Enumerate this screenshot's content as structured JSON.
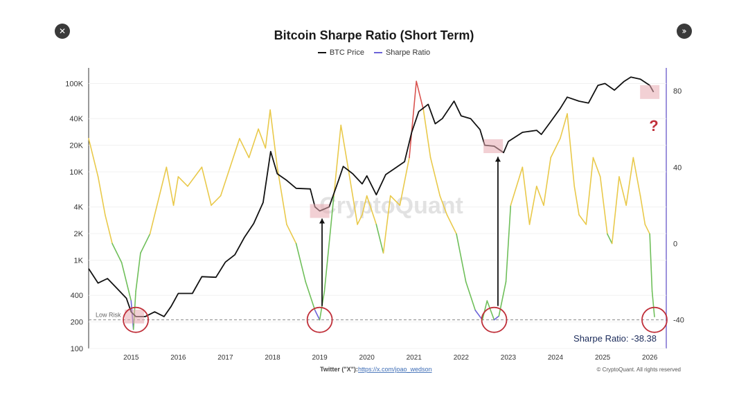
{
  "close_label": "✕",
  "next_label": "››",
  "chart_data": {
    "type": "line",
    "title": "Bitcoin Sharpe Ratio (Short Term)",
    "legend": [
      "BTC Price",
      "Sharpe Ratio"
    ],
    "colors": {
      "price": "#111111",
      "sharpe_low": "#6fbf5a",
      "sharpe_mid": "#e9c94a",
      "sharpe_high": "#d9534f",
      "sharpe_extreme": "#6b62d8",
      "box": "#e7a9b0",
      "circle": "#c0303a"
    },
    "x_ticks": [
      "2015",
      "2016",
      "2017",
      "2018",
      "2019",
      "2020",
      "2021",
      "2022",
      "2023",
      "2024",
      "2025",
      "2026"
    ],
    "xlim": [
      2014.1,
      2026.35
    ],
    "left_axis": {
      "scale": "log",
      "ticks": [
        100,
        200,
        400,
        1000,
        2000,
        4000,
        10000,
        20000,
        40000,
        100000
      ],
      "tick_labels": [
        "100",
        "200",
        "400",
        "1K",
        "2K",
        "4K",
        "10K",
        "20K",
        "40K",
        "100K"
      ],
      "ylim": [
        100,
        150000
      ]
    },
    "right_axis": {
      "ticks": [
        80,
        40,
        0,
        -40
      ],
      "tick_labels": [
        "80",
        "40",
        "0",
        "-40"
      ],
      "ylim": [
        -55,
        92
      ]
    },
    "btc_price": [
      [
        2014.1,
        800
      ],
      [
        2014.3,
        550
      ],
      [
        2014.5,
        620
      ],
      [
        2014.7,
        480
      ],
      [
        2014.9,
        370
      ],
      [
        2015.0,
        260
      ],
      [
        2015.1,
        230
      ],
      [
        2015.3,
        230
      ],
      [
        2015.5,
        260
      ],
      [
        2015.7,
        230
      ],
      [
        2015.85,
        300
      ],
      [
        2016.0,
        420
      ],
      [
        2016.3,
        420
      ],
      [
        2016.5,
        650
      ],
      [
        2016.8,
        640
      ],
      [
        2017.0,
        950
      ],
      [
        2017.2,
        1150
      ],
      [
        2017.4,
        1800
      ],
      [
        2017.6,
        2600
      ],
      [
        2017.8,
        4500
      ],
      [
        2017.96,
        17000
      ],
      [
        2018.1,
        9500
      ],
      [
        2018.3,
        8000
      ],
      [
        2018.5,
        6500
      ],
      [
        2018.8,
        6400
      ],
      [
        2018.9,
        4000
      ],
      [
        2019.0,
        3600
      ],
      [
        2019.2,
        4000
      ],
      [
        2019.4,
        8000
      ],
      [
        2019.5,
        11500
      ],
      [
        2019.7,
        9500
      ],
      [
        2019.9,
        7300
      ],
      [
        2020.0,
        9000
      ],
      [
        2020.2,
        5500
      ],
      [
        2020.4,
        9300
      ],
      [
        2020.6,
        11000
      ],
      [
        2020.8,
        13000
      ],
      [
        2020.95,
        28000
      ],
      [
        2021.1,
        48000
      ],
      [
        2021.3,
        58000
      ],
      [
        2021.45,
        35000
      ],
      [
        2021.6,
        40000
      ],
      [
        2021.85,
        63000
      ],
      [
        2022.0,
        43000
      ],
      [
        2022.2,
        40000
      ],
      [
        2022.4,
        30000
      ],
      [
        2022.5,
        20000
      ],
      [
        2022.7,
        19500
      ],
      [
        2022.9,
        16500
      ],
      [
        2023.0,
        22000
      ],
      [
        2023.3,
        28000
      ],
      [
        2023.6,
        29500
      ],
      [
        2023.7,
        26500
      ],
      [
        2023.9,
        37000
      ],
      [
        2024.1,
        52000
      ],
      [
        2024.25,
        70000
      ],
      [
        2024.5,
        63000
      ],
      [
        2024.7,
        60000
      ],
      [
        2024.9,
        95000
      ],
      [
        2025.05,
        100000
      ],
      [
        2025.25,
        84000
      ],
      [
        2025.45,
        105000
      ],
      [
        2025.6,
        118000
      ],
      [
        2025.8,
        112000
      ],
      [
        2026.0,
        95000
      ],
      [
        2026.08,
        80000
      ]
    ],
    "sharpe_ratio": [
      [
        2014.1,
        55
      ],
      [
        2014.3,
        35
      ],
      [
        2014.45,
        15
      ],
      [
        2014.6,
        0
      ],
      [
        2014.8,
        -10
      ],
      [
        2015.0,
        -30
      ],
      [
        2015.05,
        -45
      ],
      [
        2015.1,
        -25
      ],
      [
        2015.2,
        -5
      ],
      [
        2015.4,
        5
      ],
      [
        2015.55,
        20
      ],
      [
        2015.75,
        40
      ],
      [
        2015.9,
        20
      ],
      [
        2016.0,
        35
      ],
      [
        2016.2,
        30
      ],
      [
        2016.5,
        40
      ],
      [
        2016.7,
        20
      ],
      [
        2016.9,
        25
      ],
      [
        2017.1,
        40
      ],
      [
        2017.3,
        55
      ],
      [
        2017.5,
        45
      ],
      [
        2017.7,
        60
      ],
      [
        2017.85,
        50
      ],
      [
        2017.95,
        70
      ],
      [
        2018.1,
        40
      ],
      [
        2018.3,
        10
      ],
      [
        2018.5,
        0
      ],
      [
        2018.7,
        -20
      ],
      [
        2018.9,
        -35
      ],
      [
        2019.0,
        -40
      ],
      [
        2019.1,
        -25
      ],
      [
        2019.3,
        25
      ],
      [
        2019.45,
        62
      ],
      [
        2019.6,
        40
      ],
      [
        2019.8,
        10
      ],
      [
        2019.9,
        15
      ],
      [
        2020.0,
        25
      ],
      [
        2020.2,
        10
      ],
      [
        2020.35,
        -5
      ],
      [
        2020.5,
        25
      ],
      [
        2020.7,
        20
      ],
      [
        2020.9,
        45
      ],
      [
        2021.05,
        85
      ],
      [
        2021.2,
        70
      ],
      [
        2021.35,
        45
      ],
      [
        2021.55,
        25
      ],
      [
        2021.7,
        15
      ],
      [
        2021.9,
        5
      ],
      [
        2022.1,
        -20
      ],
      [
        2022.3,
        -35
      ],
      [
        2022.45,
        -40
      ],
      [
        2022.55,
        -30
      ],
      [
        2022.7,
        -40
      ],
      [
        2022.8,
        -38
      ],
      [
        2022.95,
        -20
      ],
      [
        2023.05,
        20
      ],
      [
        2023.3,
        40
      ],
      [
        2023.45,
        10
      ],
      [
        2023.6,
        30
      ],
      [
        2023.75,
        20
      ],
      [
        2023.9,
        45
      ],
      [
        2024.1,
        55
      ],
      [
        2024.25,
        68
      ],
      [
        2024.4,
        30
      ],
      [
        2024.5,
        15
      ],
      [
        2024.65,
        10
      ],
      [
        2024.8,
        45
      ],
      [
        2024.95,
        35
      ],
      [
        2025.1,
        5
      ],
      [
        2025.2,
        0
      ],
      [
        2025.35,
        35
      ],
      [
        2025.5,
        20
      ],
      [
        2025.65,
        45
      ],
      [
        2025.8,
        25
      ],
      [
        2025.9,
        10
      ],
      [
        2026.0,
        5
      ],
      [
        2026.05,
        -25
      ],
      [
        2026.1,
        -38.38
      ]
    ],
    "annotations": {
      "low_risk_label": "Low Risk",
      "sharpe_readout": "Sharpe Ratio: -38.38",
      "question_mark": "?",
      "watermark": "CryptoQuant",
      "footer_prefix": "Twitter (\"X\"):",
      "footer_link": "https://x.com/joao_wedson",
      "copyright": "© CryptoQuant. All rights reserved"
    },
    "low_risk_level": -40,
    "bottom_boxes": [
      [
        2015.07,
        230
      ],
      [
        2019.0,
        3600
      ],
      [
        2022.68,
        19500
      ],
      [
        2026.0,
        80000
      ]
    ],
    "circles": [
      [
        2015.1,
        -40
      ],
      [
        2019.0,
        -40
      ],
      [
        2022.7,
        -40
      ],
      [
        2026.1,
        -40
      ]
    ],
    "arrows": [
      [
        2019.05,
        -40,
        3800
      ],
      [
        2022.78,
        -40,
        19000
      ]
    ]
  }
}
